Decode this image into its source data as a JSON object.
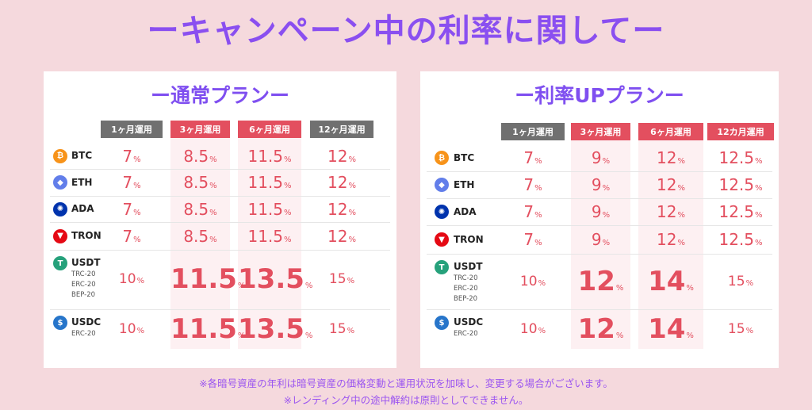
{
  "main_title": "ーキャンペーン中の利率に関してー",
  "colors": {
    "background": "#f5d9dd",
    "title": "#8a4ff0",
    "accent_red": "#e34f5f",
    "header_gray": "#707070",
    "btc": "#f7931a",
    "eth": "#627eea",
    "ada": "#0033ad",
    "tron": "#e50914",
    "usdt": "#26a17b",
    "usdc": "#2775ca"
  },
  "left_plan": {
    "title": "ー通常プランー",
    "headers": [
      "1ヶ月運用",
      "3ヶ月運用",
      "6ヶ月運用",
      "12ヶ月運用"
    ],
    "pct": "%",
    "rows": [
      {
        "coin": "BTC",
        "sub": [],
        "rates": [
          "7",
          "8.5",
          "11.5",
          "12"
        ]
      },
      {
        "coin": "ETH",
        "sub": [],
        "rates": [
          "7",
          "8.5",
          "11.5",
          "12"
        ]
      },
      {
        "coin": "ADA",
        "sub": [],
        "rates": [
          "7",
          "8.5",
          "11.5",
          "12"
        ]
      },
      {
        "coin": "TRON",
        "sub": [],
        "rates": [
          "7",
          "8.5",
          "11.5",
          "12"
        ]
      },
      {
        "coin": "USDT",
        "sub": [
          "TRC-20",
          "ERC-20",
          "BEP-20"
        ],
        "rates": [
          "10",
          "11.5",
          "13.5",
          "15"
        ]
      },
      {
        "coin": "USDC",
        "sub": [
          "ERC-20"
        ],
        "rates": [
          "10",
          "11.5",
          "13.5",
          "15"
        ]
      }
    ]
  },
  "right_plan": {
    "title": "ー利率UPプランー",
    "headers": [
      "1ヶ月運用",
      "3ヶ月運用",
      "6ヶ月運用",
      "12カ月運用"
    ],
    "pct": "%",
    "rows": [
      {
        "coin": "BTC",
        "sub": [],
        "rates": [
          "7",
          "9",
          "12",
          "12.5"
        ]
      },
      {
        "coin": "ETH",
        "sub": [],
        "rates": [
          "7",
          "9",
          "12",
          "12.5"
        ]
      },
      {
        "coin": "ADA",
        "sub": [],
        "rates": [
          "7",
          "9",
          "12",
          "12.5"
        ]
      },
      {
        "coin": "TRON",
        "sub": [],
        "rates": [
          "7",
          "9",
          "12",
          "12.5"
        ]
      },
      {
        "coin": "USDT",
        "sub": [
          "TRC-20",
          "ERC-20",
          "BEP-20"
        ],
        "rates": [
          "10",
          "12",
          "14",
          "15"
        ]
      },
      {
        "coin": "USDC",
        "sub": [
          "ERC-20"
        ],
        "rates": [
          "10",
          "12",
          "14",
          "15"
        ]
      }
    ]
  },
  "icons": {
    "BTC": "bitcoin-icon",
    "ETH": "ethereum-icon",
    "ADA": "cardano-icon",
    "TRON": "tron-icon",
    "USDT": "tether-icon",
    "USDC": "usdc-icon"
  },
  "footnotes": [
    "※各暗号資産の年利は暗号資産の価格変動と運用状況を加味し、変更する場合がございます。",
    "※レンディング中の途中解約は原則としてできません。"
  ]
}
